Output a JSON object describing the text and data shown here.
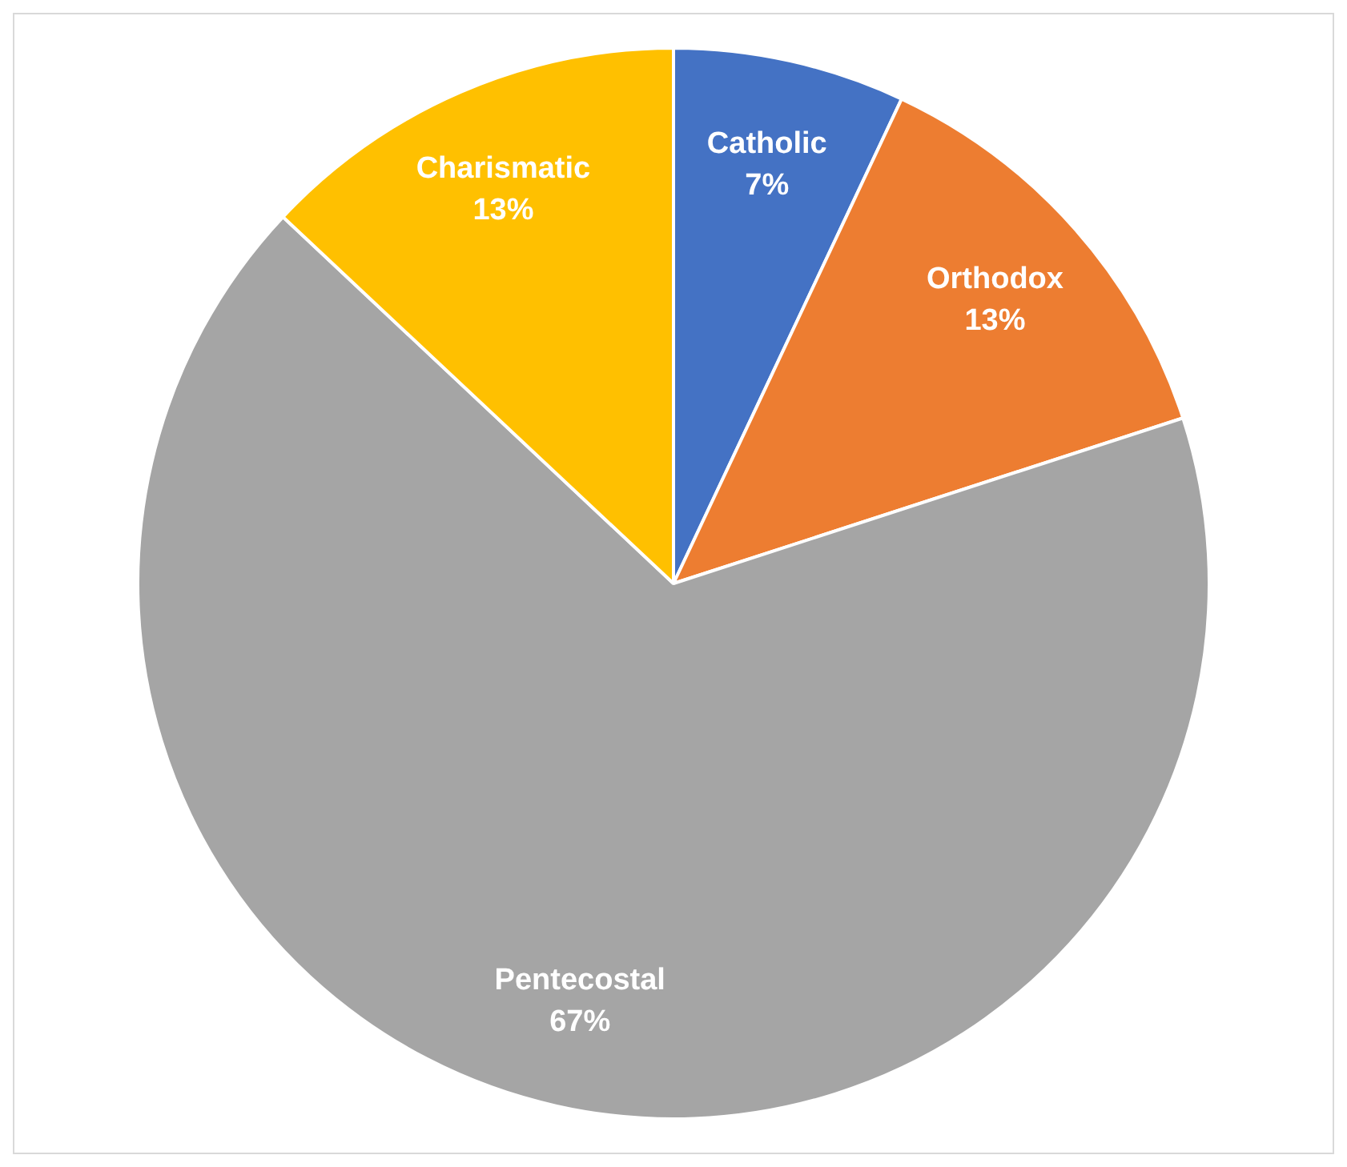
{
  "chart_data": {
    "type": "pie",
    "categories": [
      "Catholic",
      "Orthodox",
      "Pentecostal",
      "Charismatic"
    ],
    "values": [
      7,
      13,
      67,
      13
    ],
    "colors": [
      "#4472c4",
      "#ed7d31",
      "#a5a5a5",
      "#ffc000"
    ],
    "value_labels": [
      "7%",
      "13%",
      "67%",
      "13%"
    ],
    "legend": false
  }
}
